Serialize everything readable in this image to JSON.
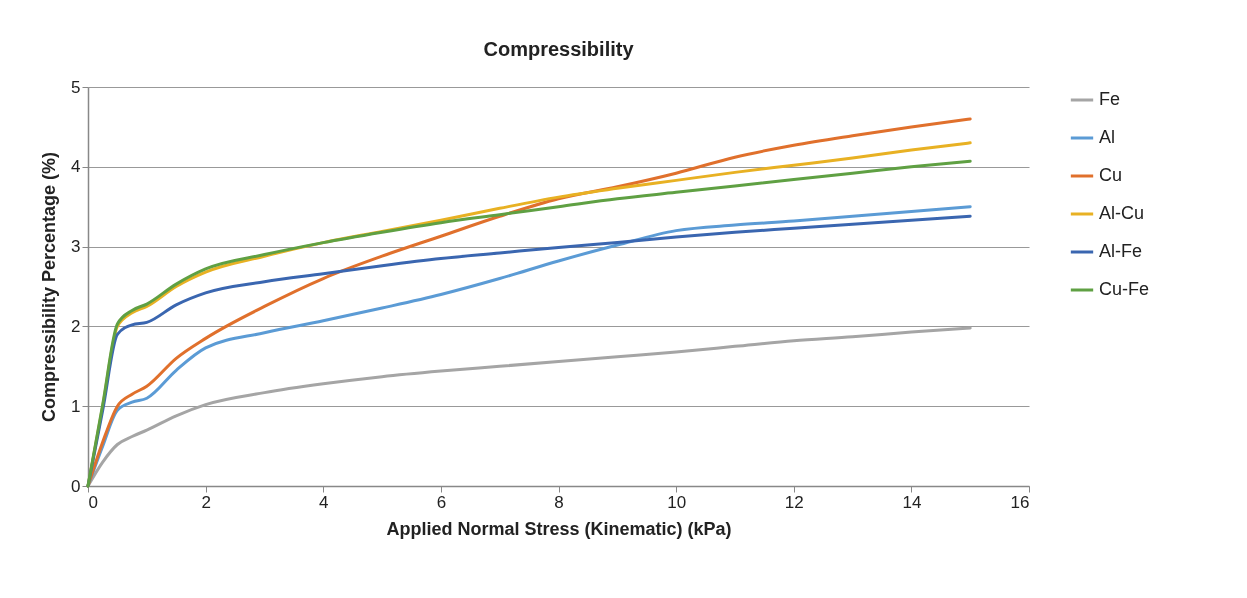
{
  "chart_data": {
    "type": "line",
    "title": "Compressibility",
    "xlabel": "Applied Normal Stress (Kinematic) (kPa)",
    "ylabel": "Compressibility Percentage (%)",
    "x": [
      0,
      0.25,
      0.5,
      0.75,
      1,
      1.5,
      2,
      3,
      4,
      5,
      6,
      7,
      8,
      9,
      10,
      11,
      12,
      13,
      14,
      15
    ],
    "series": [
      {
        "name": "Fe",
        "color": "#a5a5a5",
        "values": [
          0,
          0.3,
          0.52,
          0.62,
          0.7,
          0.88,
          1.02,
          1.17,
          1.28,
          1.37,
          1.44,
          1.5,
          1.56,
          1.62,
          1.68,
          1.75,
          1.82,
          1.87,
          1.93,
          1.98
        ]
      },
      {
        "name": "Al",
        "color": "#5b9bd5",
        "values": [
          0,
          0.5,
          0.95,
          1.05,
          1.1,
          1.45,
          1.73,
          1.92,
          2.07,
          2.23,
          2.4,
          2.6,
          2.82,
          3.02,
          3.2,
          3.27,
          3.32,
          3.38,
          3.44,
          3.5
        ]
      },
      {
        "name": "Cu",
        "color": "#e0702c",
        "values": [
          0,
          0.55,
          1.0,
          1.15,
          1.25,
          1.6,
          1.85,
          2.25,
          2.6,
          2.88,
          3.13,
          3.38,
          3.6,
          3.75,
          3.92,
          4.12,
          4.27,
          4.39,
          4.5,
          4.6
        ]
      },
      {
        "name": "Al-Cu",
        "color": "#e8b123",
        "values": [
          0,
          1.0,
          2.0,
          2.17,
          2.25,
          2.5,
          2.68,
          2.88,
          3.05,
          3.19,
          3.33,
          3.48,
          3.62,
          3.73,
          3.83,
          3.93,
          4.02,
          4.11,
          4.21,
          4.3
        ]
      },
      {
        "name": "Al-Fe",
        "color": "#3a66b0",
        "values": [
          0,
          0.95,
          1.9,
          2.02,
          2.05,
          2.27,
          2.42,
          2.56,
          2.66,
          2.76,
          2.85,
          2.92,
          2.99,
          3.05,
          3.12,
          3.18,
          3.23,
          3.28,
          3.33,
          3.38
        ]
      },
      {
        "name": "Cu-Fe",
        "color": "#5fa043",
        "values": [
          0,
          1.02,
          2.03,
          2.2,
          2.28,
          2.53,
          2.72,
          2.9,
          3.05,
          3.18,
          3.3,
          3.4,
          3.5,
          3.6,
          3.68,
          3.76,
          3.84,
          3.92,
          4.0,
          4.07
        ]
      }
    ],
    "xlim": [
      0,
      16
    ],
    "xticks": [
      0,
      2,
      4,
      6,
      8,
      10,
      12,
      14,
      16
    ],
    "ylim": [
      0,
      5
    ],
    "yticks": [
      0,
      1,
      2,
      3,
      4,
      5
    ],
    "grid": "y",
    "legend": "right",
    "marker": "none",
    "line_style": "solid"
  }
}
